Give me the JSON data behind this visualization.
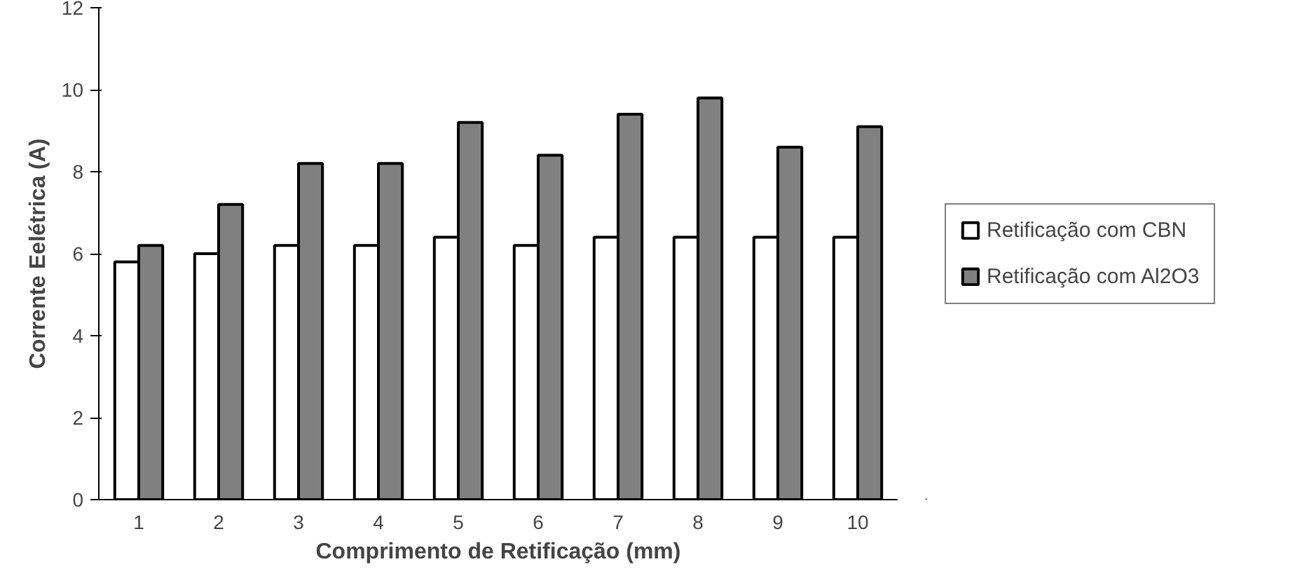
{
  "chart_data": {
    "type": "bar",
    "xlabel": "Comprimento de Retificação (mm)",
    "ylabel": "Corrente Eelétrica (A)",
    "categories": [
      "1",
      "2",
      "3",
      "4",
      "5",
      "6",
      "7",
      "8",
      "9",
      "10"
    ],
    "series": [
      {
        "name": "Retificação com CBN",
        "color": "#ffffff",
        "values": [
          5.8,
          6.0,
          6.2,
          6.2,
          6.4,
          6.2,
          6.4,
          6.4,
          6.4,
          6.4
        ]
      },
      {
        "name": "Retificação com Al2O3",
        "color": "#808080",
        "values": [
          6.2,
          7.2,
          8.2,
          8.2,
          9.2,
          8.4,
          9.4,
          9.8,
          8.6,
          9.1
        ]
      }
    ],
    "ylim": [
      0,
      12
    ],
    "yticks": [
      0,
      2,
      4,
      6,
      8,
      10,
      12
    ],
    "grid": false,
    "legend": "right"
  }
}
